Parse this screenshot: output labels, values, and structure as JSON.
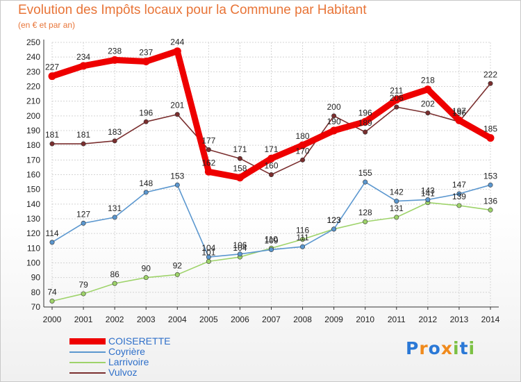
{
  "chart_data": {
    "type": "line",
    "title": "Evolution des Impôts locaux pour la Commune par Habitant",
    "subtitle": "(en € et par an)",
    "xlabel": "",
    "ylabel": "",
    "categories": [
      "2000",
      "2001",
      "2002",
      "2003",
      "2004",
      "2005",
      "2006",
      "2007",
      "2008",
      "2009",
      "2010",
      "2011",
      "2012",
      "2013",
      "2014"
    ],
    "ylim": [
      70,
      250
    ],
    "yticks": [
      70,
      80,
      90,
      100,
      110,
      120,
      130,
      140,
      150,
      160,
      170,
      180,
      190,
      200,
      210,
      220,
      230,
      240,
      250
    ],
    "grid": true,
    "legend_position": "bottom-left",
    "series": [
      {
        "name": "COISERETTE",
        "color": "#ee0000",
        "values": [
          227,
          234,
          238,
          237,
          244,
          162,
          158,
          171,
          180,
          190,
          196,
          211,
          218,
          197,
          185
        ]
      },
      {
        "name": "Coyrière",
        "color": "#5b97cf",
        "values": [
          114,
          127,
          131,
          148,
          153,
          104,
          106,
          109,
          111,
          123,
          155,
          142,
          143,
          147,
          153
        ]
      },
      {
        "name": "Larrivoire",
        "color": "#9ed36a",
        "values": [
          74,
          79,
          86,
          90,
          92,
          101,
          104,
          110,
          116,
          123,
          128,
          131,
          141,
          139,
          136
        ]
      },
      {
        "name": "Vulvoz",
        "color": "#7a2e2e",
        "values": [
          181,
          181,
          183,
          196,
          201,
          177,
          171,
          160,
          170,
          200,
          189,
          206,
          202,
          196,
          222
        ]
      }
    ]
  },
  "logo": {
    "text": "Proxiti",
    "colors": [
      "#2a78d6",
      "#f08a1c",
      "#2a78d6",
      "#f08a1c",
      "#7bc043",
      "#2a78d6",
      "#7bc043"
    ]
  }
}
